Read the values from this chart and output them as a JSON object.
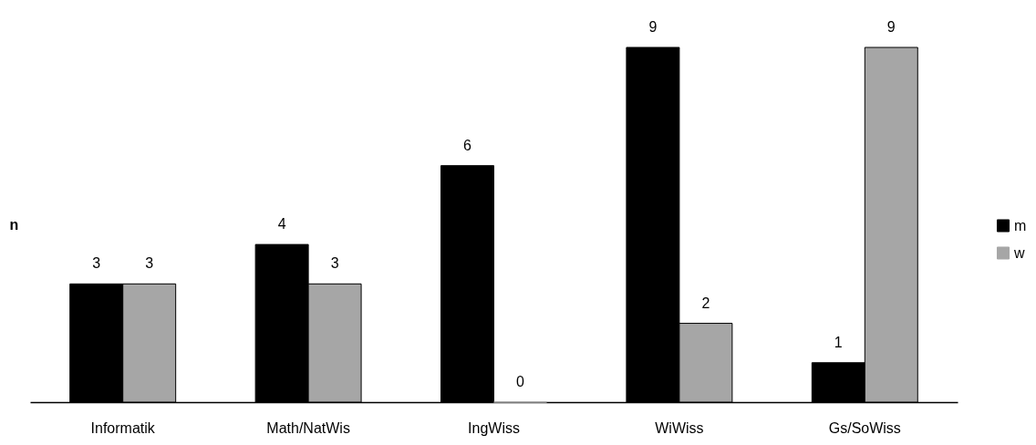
{
  "chart_data": {
    "type": "bar",
    "ylabel": "n",
    "categories": [
      "Informatik",
      "Math/NatWis",
      "IngWiss",
      "WiWiss",
      "Gs/SoWiss"
    ],
    "series": [
      {
        "name": "m",
        "color": "#000000",
        "values": [
          3,
          4,
          6,
          9,
          1
        ]
      },
      {
        "name": "w",
        "color": "#a6a6a6",
        "values": [
          3,
          3,
          0,
          2,
          9
        ]
      }
    ],
    "data_labels": true,
    "legend": "right",
    "tick_labels": "x"
  }
}
